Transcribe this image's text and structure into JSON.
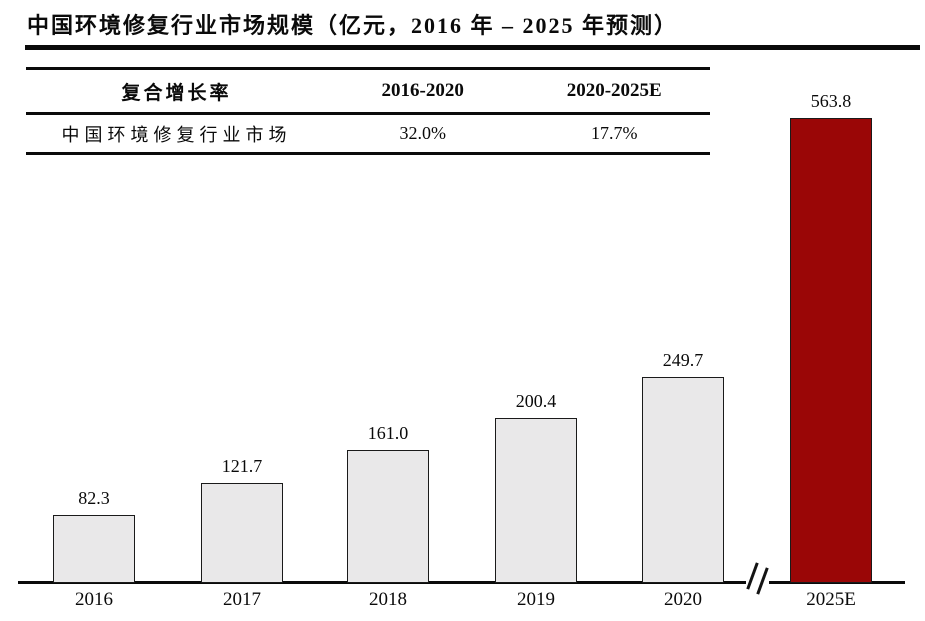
{
  "page": {
    "title": "中国环境修复行业市场规模（亿元，2016 年 – 2025 年预测）"
  },
  "table": {
    "headers": [
      "复合增长率",
      "2016-2020",
      "2020-2025E"
    ],
    "rows": [
      [
        "中国环境修复行业市场",
        "32.0%",
        "17.7%"
      ]
    ]
  },
  "chart_data": {
    "type": "bar",
    "title": "中国环境修复行业市场规模（亿元，2016 年 – 2025 年预测）",
    "unit": "亿元",
    "categories": [
      "2016",
      "2017",
      "2018",
      "2019",
      "2020",
      "2025E"
    ],
    "values": [
      82.3,
      121.7,
      161.0,
      200.4,
      249.7,
      563.8
    ],
    "value_labels": [
      "82.3",
      "121.7",
      "161.0",
      "200.4",
      "249.7",
      "563.8"
    ],
    "series_name": "中国环境修复行业市场规模",
    "xlabel": "",
    "ylabel": "",
    "ylim": [
      0,
      600
    ],
    "grid": false,
    "legend": false,
    "y_axis_visible": false,
    "axis_break_between": [
      "2020",
      "2025E"
    ],
    "highlight_category": "2025E",
    "cagr_2016_2020": "32.0%",
    "cagr_2020_2025e": "17.7%",
    "colors": {
      "bar_default": "#E9E8E9",
      "bar_highlight": "#9A0606",
      "bar_border": "#1a1a1a",
      "axis": "#0a0a0a",
      "text": "#0a0a0a"
    }
  }
}
